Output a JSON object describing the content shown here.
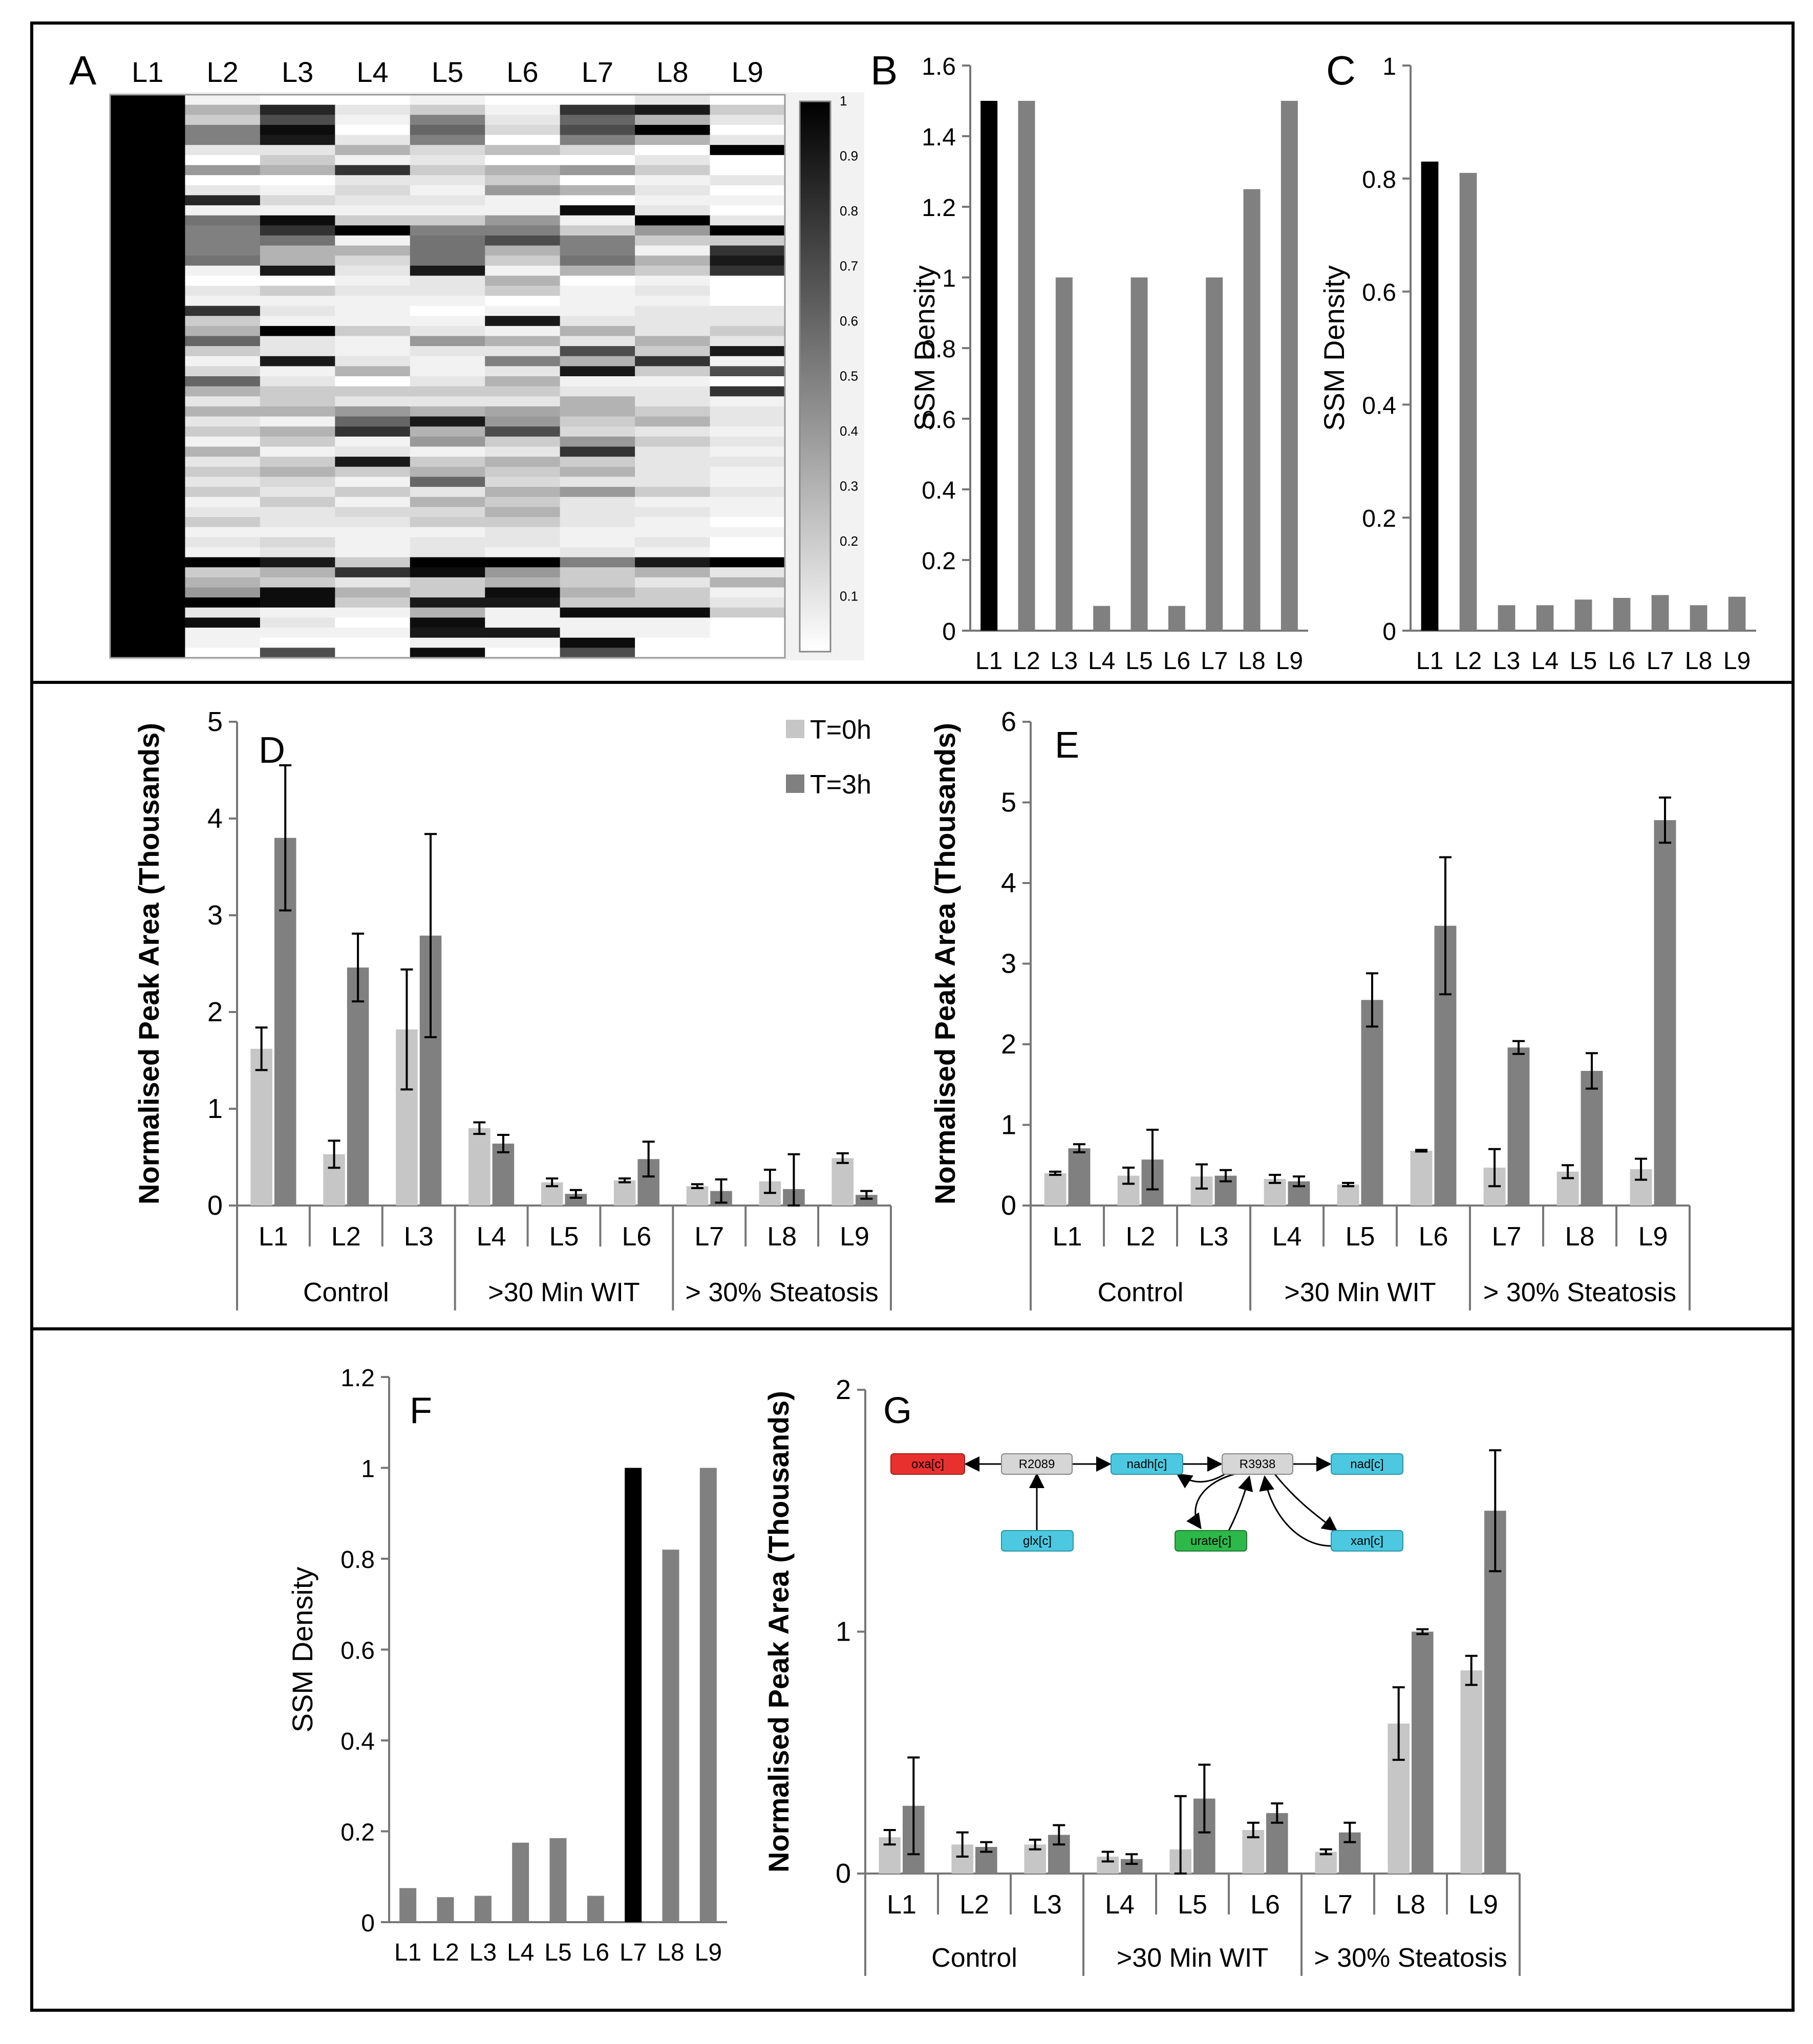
{
  "colors": {
    "light": "#c6c6c6",
    "dark": "#808080",
    "black": "#000000",
    "frame": "#000000"
  },
  "lane_labels": [
    "L1",
    "L2",
    "L3",
    "L4",
    "L5",
    "L6",
    "L7",
    "L8",
    "L9"
  ],
  "panels": {
    "A": "A",
    "B": "B",
    "C": "C",
    "D": "D",
    "E": "E",
    "F": "F",
    "G": "G"
  },
  "group_labels": [
    "Control",
    ">30 Min WIT",
    "> 30% Steatosis"
  ],
  "legend": [
    "T=0h",
    "T=3h"
  ],
  "pathway": {
    "nodes": [
      "oxa[c]",
      "R2089",
      "nadh[c]",
      "R3938",
      "nad[c]",
      "glx[c]",
      "urate[c]",
      "xan[c]"
    ]
  },
  "chart_data": [
    {
      "id": "A",
      "type": "heatmap",
      "columns": [
        "L1",
        "L2",
        "L3",
        "L4",
        "L5",
        "L6",
        "L7",
        "L8",
        "L9"
      ],
      "colorbar": {
        "range": [
          0,
          1
        ],
        "ticks": [
          "1",
          "0.9",
          "0.8",
          "0.7",
          "0.6",
          "0.5",
          "0.4",
          "0.3",
          "0.2",
          "0.1"
        ],
        "low_color": "#ffffff",
        "high_color": "#000000"
      },
      "rows": [
        [
          1,
          0.05,
          0,
          0,
          0.05,
          0,
          0,
          0.1,
          0
        ],
        [
          1,
          0.3,
          0.85,
          0.1,
          0.2,
          0.05,
          0.8,
          0.9,
          0.2
        ],
        [
          1,
          0.2,
          0.7,
          0.05,
          0.5,
          0.1,
          0.6,
          0.3,
          0.1
        ],
        [
          1,
          0.5,
          0.95,
          0,
          0.6,
          0.15,
          0.7,
          1,
          0
        ],
        [
          1,
          0.5,
          0.9,
          0.1,
          0.5,
          0,
          0.5,
          0.3,
          0.1
        ],
        [
          1,
          0.1,
          0.1,
          0.3,
          0.15,
          0.25,
          0.15,
          0,
          1
        ],
        [
          1,
          0,
          0.2,
          0.05,
          0.1,
          0,
          0,
          0.1,
          0
        ],
        [
          1,
          0.4,
          0.3,
          0.8,
          0.2,
          0.3,
          0.4,
          0.2,
          0
        ],
        [
          1,
          0,
          0,
          0.1,
          0.1,
          0.2,
          0,
          0.05,
          0.1
        ],
        [
          1,
          0.1,
          0.05,
          0.15,
          0.05,
          0.4,
          0.3,
          0.1,
          0
        ],
        [
          1,
          0.85,
          0.15,
          0.1,
          0.1,
          0.05,
          0,
          0.05,
          0.05
        ],
        [
          1,
          0.05,
          0.05,
          0.05,
          0.05,
          0.05,
          0.95,
          0.1,
          0
        ],
        [
          1,
          0.55,
          0.95,
          0.2,
          0.2,
          0.4,
          0.05,
          1,
          0.1
        ],
        [
          1,
          0.5,
          0.8,
          1,
          0.5,
          0.5,
          0.2,
          0.4,
          1
        ],
        [
          1,
          0.5,
          0.55,
          0.05,
          0.55,
          0.7,
          0.5,
          0.2,
          0.2
        ],
        [
          1,
          0.5,
          0.3,
          0.3,
          0.55,
          0.3,
          0.5,
          0.05,
          0.8
        ],
        [
          1,
          0.55,
          0.3,
          0.15,
          0.55,
          0.2,
          0.55,
          0.3,
          0.9
        ],
        [
          1,
          0.05,
          0.9,
          0.1,
          0.9,
          0.05,
          0.3,
          0.2,
          0.8
        ],
        [
          1,
          0,
          0,
          0.05,
          0.1,
          0.3,
          0,
          0.05,
          0
        ],
        [
          1,
          0.1,
          0.2,
          0.1,
          0.1,
          0.2,
          0.05,
          0.1,
          0
        ],
        [
          1,
          0.05,
          0.05,
          0.05,
          0.05,
          0,
          0.05,
          0.05,
          0
        ],
        [
          1,
          0.8,
          0.1,
          0.05,
          0,
          0.05,
          0.05,
          0.1,
          0.1
        ],
        [
          1,
          0.2,
          0.05,
          0.05,
          0.05,
          0.9,
          0.1,
          0.1,
          0.1
        ],
        [
          1,
          0.3,
          1,
          0.2,
          0.1,
          0.05,
          0.3,
          0.1,
          0.2
        ],
        [
          1,
          0.6,
          0.1,
          0.05,
          0.4,
          0.3,
          0.1,
          0.3,
          0.1
        ],
        [
          1,
          0.2,
          0.1,
          0.05,
          0.1,
          0.1,
          0.7,
          0.2,
          0.9
        ],
        [
          1,
          0.05,
          0.9,
          0.1,
          0.05,
          0.5,
          0.3,
          0.8,
          0.05
        ],
        [
          1,
          0.15,
          0.05,
          0.3,
          0.05,
          0.1,
          0.9,
          0.2,
          0.7
        ],
        [
          1,
          0.6,
          0.1,
          0,
          0.1,
          0.3,
          0.05,
          0.05,
          0
        ],
        [
          1,
          0.3,
          0.2,
          0.2,
          0.2,
          0.2,
          0.1,
          0.1,
          0.8
        ],
        [
          1,
          0.1,
          0.2,
          0.1,
          0.1,
          0.1,
          0.3,
          0.1,
          0.05
        ],
        [
          1,
          0.3,
          0.3,
          0.4,
          0.3,
          0.35,
          0.3,
          0.2,
          0.1
        ],
        [
          1,
          0.1,
          0.05,
          0.6,
          0.9,
          0.4,
          0.2,
          0.3,
          0.1
        ],
        [
          1,
          0.2,
          0.3,
          0.8,
          0.3,
          0.7,
          0.15,
          0.1,
          0.05
        ],
        [
          1,
          0.05,
          0.2,
          0.05,
          0.4,
          0.2,
          0.4,
          0.2,
          0.1
        ],
        [
          1,
          0.3,
          0.05,
          0.1,
          0.05,
          0.1,
          0.8,
          0.1,
          0.05
        ],
        [
          1,
          0.1,
          0.2,
          0.9,
          0.2,
          0.3,
          0.2,
          0.1,
          0.1
        ],
        [
          1,
          0.2,
          0.3,
          0.2,
          0.3,
          0.2,
          0.3,
          0.1,
          0.05
        ],
        [
          1,
          0.1,
          0.15,
          0.05,
          0.6,
          0.15,
          0.1,
          0.1,
          0.05
        ],
        [
          1,
          0.2,
          0.1,
          0.2,
          0.1,
          0.3,
          0.4,
          0.2,
          0.1
        ],
        [
          1,
          0.05,
          0.2,
          0.05,
          0.3,
          0.2,
          0.1,
          0.05,
          0.05
        ],
        [
          1,
          0.1,
          0.1,
          0.15,
          0.15,
          0.3,
          0.1,
          0.1,
          0.05
        ],
        [
          1,
          0.2,
          0.1,
          0.1,
          0.2,
          0.2,
          0.1,
          0.05,
          0
        ],
        [
          1,
          0.05,
          0.05,
          0.05,
          0.05,
          0.1,
          0.05,
          0.05,
          0.05
        ],
        [
          1,
          0.1,
          0.15,
          0.05,
          0.1,
          0.1,
          0.05,
          0.1,
          0
        ],
        [
          1,
          0.05,
          0.1,
          0.05,
          0.1,
          0.05,
          0.1,
          0.05,
          0
        ],
        [
          1,
          1,
          0.9,
          0.2,
          1,
          1,
          0.5,
          0.9,
          1
        ],
        [
          1,
          0.2,
          0.3,
          0.8,
          0.95,
          0.4,
          0.2,
          0.3,
          0.1
        ],
        [
          1,
          0.3,
          0.2,
          0.1,
          0.2,
          0.3,
          0.2,
          0.1,
          0.3
        ],
        [
          1,
          0.4,
          0.95,
          0.3,
          0.2,
          0.95,
          0.3,
          0.2,
          0.05
        ],
        [
          1,
          1,
          0.95,
          0.2,
          0.9,
          0.9,
          0.2,
          0.2,
          0.1
        ],
        [
          1,
          0.1,
          0.05,
          0.05,
          0.3,
          0.05,
          0.95,
          0.95,
          0.2
        ],
        [
          1,
          0.95,
          0.1,
          0,
          0.95,
          0.05,
          0.05,
          0.05,
          0
        ],
        [
          1,
          0.05,
          0.05,
          0.05,
          0.9,
          0.9,
          0.05,
          0.05,
          0
        ],
        [
          1,
          0.05,
          0,
          0,
          0.05,
          0.05,
          0.95,
          0,
          0
        ],
        [
          1,
          0,
          0.7,
          0,
          0.95,
          0,
          0.7,
          0,
          0
        ]
      ]
    },
    {
      "id": "B",
      "type": "bar",
      "categories": [
        "L1",
        "L2",
        "L3",
        "L4",
        "L5",
        "L6",
        "L7",
        "L8",
        "L9"
      ],
      "values": [
        1.5,
        1.5,
        1.0,
        0.07,
        1.0,
        0.07,
        1.0,
        1.25,
        1.5
      ],
      "highlight_index": 0,
      "ylabel": "SSM Density",
      "ylim": [
        0,
        1.6
      ],
      "yticks": [
        "0",
        "0.2",
        "0.4",
        "0.6",
        "0.8",
        "1",
        "1.2",
        "1.4",
        "1.6"
      ]
    },
    {
      "id": "C",
      "type": "bar",
      "categories": [
        "L1",
        "L2",
        "L3",
        "L4",
        "L5",
        "L6",
        "L7",
        "L8",
        "L9"
      ],
      "values": [
        0.83,
        0.81,
        0.045,
        0.045,
        0.055,
        0.058,
        0.063,
        0.045,
        0.06
      ],
      "highlight_index": 0,
      "ylabel": "SSM Density",
      "ylim": [
        0,
        1
      ],
      "yticks": [
        "0",
        "0.2",
        "0.4",
        "0.6",
        "0.8",
        "1"
      ]
    },
    {
      "id": "D",
      "type": "bar",
      "categories": [
        "L1",
        "L2",
        "L3",
        "L4",
        "L5",
        "L6",
        "L7",
        "L8",
        "L9"
      ],
      "groups": [
        {
          "label": "Control",
          "span": 3
        },
        {
          "label": ">30 Min WIT",
          "span": 3
        },
        {
          "label": "> 30% Steatosis",
          "span": 3
        }
      ],
      "series": [
        {
          "name": "T=0h",
          "values": [
            1.62,
            0.53,
            1.82,
            0.8,
            0.24,
            0.26,
            0.2,
            0.25,
            0.49
          ],
          "errors": [
            0.22,
            0.14,
            0.62,
            0.06,
            0.04,
            0.02,
            0.02,
            0.12,
            0.05
          ]
        },
        {
          "name": "T=3h",
          "values": [
            3.8,
            2.46,
            2.79,
            0.64,
            0.12,
            0.48,
            0.15,
            0.17,
            0.11
          ],
          "errors": [
            0.75,
            0.35,
            1.05,
            0.09,
            0.04,
            0.18,
            0.12,
            0.36,
            0.04
          ]
        }
      ],
      "ylabel": "Normalised Peak Area  (Thousands)",
      "ylim": [
        0,
        5
      ],
      "yticks": [
        "0",
        "1",
        "2",
        "3",
        "4",
        "5"
      ]
    },
    {
      "id": "E",
      "type": "bar",
      "categories": [
        "L1",
        "L2",
        "L3",
        "L4",
        "L5",
        "L6",
        "L7",
        "L8",
        "L9"
      ],
      "groups": [
        {
          "label": "Control",
          "span": 3
        },
        {
          "label": ">30 Min WIT",
          "span": 3
        },
        {
          "label": "> 30% Steatosis",
          "span": 3
        }
      ],
      "series": [
        {
          "name": "T=0h",
          "values": [
            0.4,
            0.37,
            0.36,
            0.33,
            0.26,
            0.68,
            0.47,
            0.42,
            0.45
          ],
          "errors": [
            0.02,
            0.1,
            0.15,
            0.05,
            0.02,
            0.01,
            0.23,
            0.08,
            0.13
          ]
        },
        {
          "name": "T=3h",
          "values": [
            0.71,
            0.57,
            0.37,
            0.3,
            2.55,
            3.47,
            1.96,
            1.67,
            4.78
          ],
          "errors": [
            0.05,
            0.37,
            0.07,
            0.06,
            0.33,
            0.85,
            0.08,
            0.22,
            0.28
          ]
        }
      ],
      "ylabel": "Normalised Peak Area  (Thousands)",
      "ylim": [
        0,
        6
      ],
      "yticks": [
        "0",
        "1",
        "2",
        "3",
        "4",
        "5",
        "6"
      ]
    },
    {
      "id": "F",
      "type": "bar",
      "categories": [
        "L1",
        "L2",
        "L3",
        "L4",
        "L5",
        "L6",
        "L7",
        "L8",
        "L9"
      ],
      "values": [
        0.075,
        0.055,
        0.058,
        0.175,
        0.185,
        0.058,
        1.0,
        0.82,
        1.0
      ],
      "highlight_index": 6,
      "ylabel": "SSM Density",
      "ylim": [
        0,
        1.2
      ],
      "yticks": [
        "0",
        "0.2",
        "0.4",
        "0.6",
        "0.8",
        "1",
        "1.2"
      ]
    },
    {
      "id": "G",
      "type": "bar",
      "categories": [
        "L1",
        "L2",
        "L3",
        "L4",
        "L5",
        "L6",
        "L7",
        "L8",
        "L9"
      ],
      "groups": [
        {
          "label": "Control",
          "span": 3
        },
        {
          "label": ">30 Min WIT",
          "span": 3
        },
        {
          "label": "> 30% Steatosis",
          "span": 3
        }
      ],
      "series": [
        {
          "name": "T=0h",
          "values": [
            0.15,
            0.12,
            0.12,
            0.07,
            0.1,
            0.18,
            0.09,
            0.62,
            0.84
          ],
          "errors": [
            0.03,
            0.05,
            0.02,
            0.02,
            0.22,
            0.03,
            0.01,
            0.15,
            0.06
          ]
        },
        {
          "name": "T=3h",
          "values": [
            0.28,
            0.11,
            0.16,
            0.06,
            0.31,
            0.25,
            0.17,
            1.0,
            1.5
          ],
          "errors": [
            0.2,
            0.02,
            0.04,
            0.02,
            0.14,
            0.04,
            0.04,
            0.01,
            0.25
          ]
        }
      ],
      "ylabel": "Normalised Peak Area  (Thousands)",
      "ylim": [
        0,
        2
      ],
      "yticks": [
        "0",
        "1",
        "2"
      ]
    }
  ]
}
